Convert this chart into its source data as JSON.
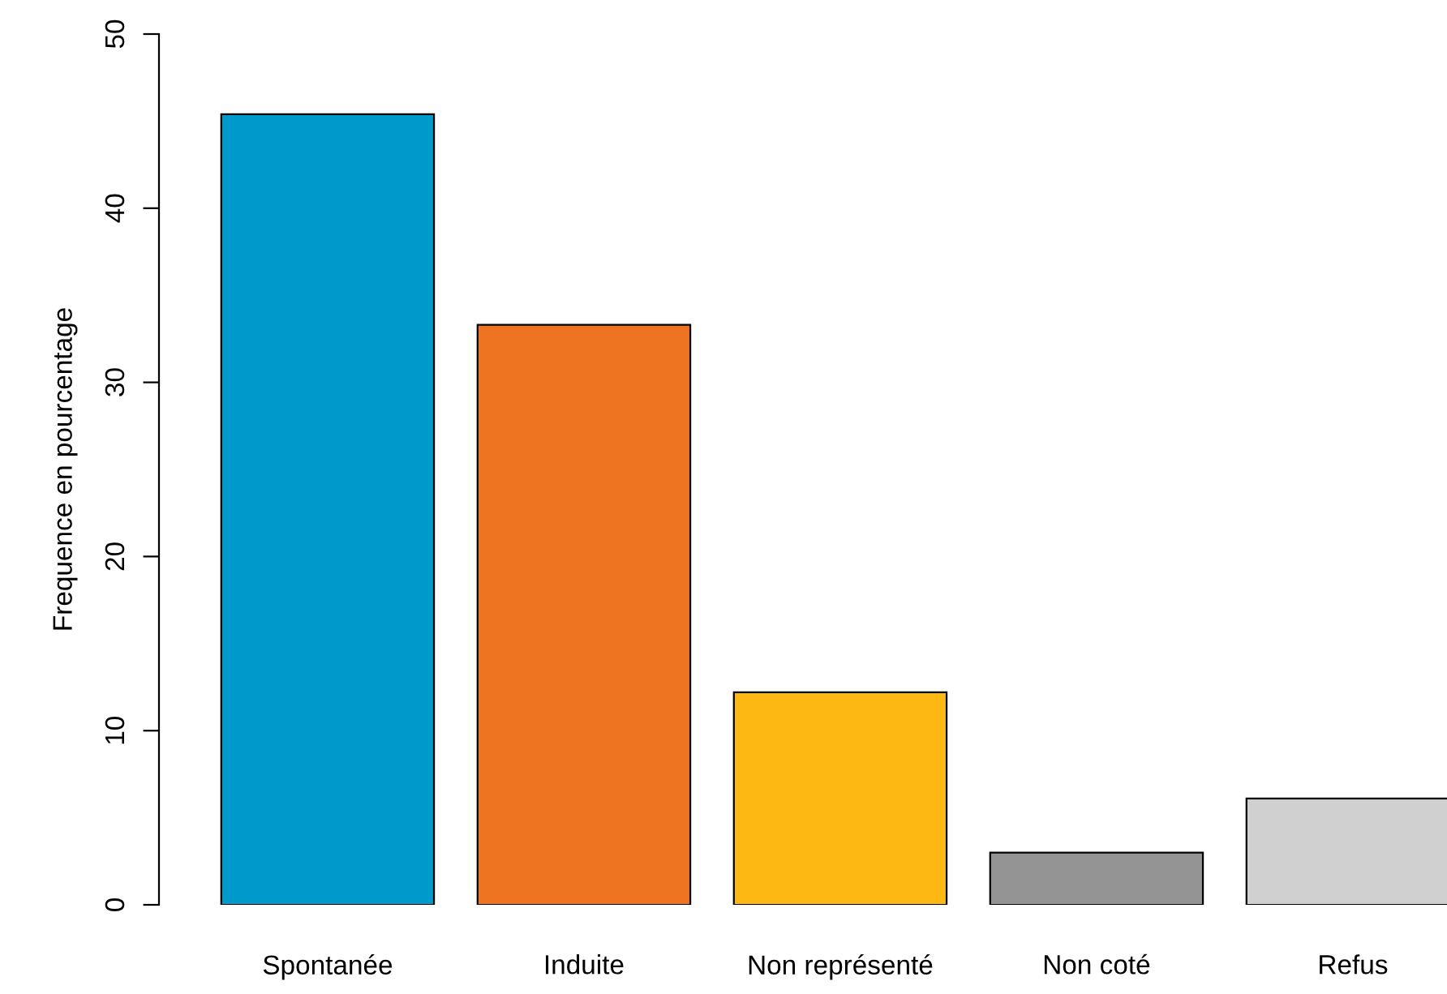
{
  "chart_data": {
    "type": "bar",
    "ylabel": "Frequence en pourcentage",
    "categories": [
      "Spontanée",
      "Induite",
      "Non représenté",
      "Non coté",
      "Refus"
    ],
    "values": [
      45.4,
      33.3,
      12.2,
      3.0,
      6.1
    ],
    "colors": [
      "#0099cc",
      "#ee7421",
      "#fdb813",
      "#949494",
      "#d0d0d0"
    ],
    "ylim": [
      0,
      50
    ],
    "yticks": [
      0,
      10,
      20,
      30,
      40,
      50
    ],
    "grid": false,
    "legend": false
  }
}
